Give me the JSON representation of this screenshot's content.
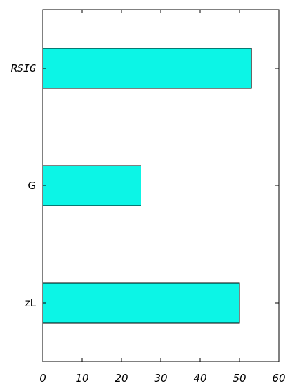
{
  "chart_data": {
    "type": "bar",
    "orientation": "horizontal",
    "categories": [
      "RSIG",
      "G",
      "zL"
    ],
    "values": [
      53,
      25,
      50
    ],
    "xlim": [
      0,
      60
    ],
    "x_ticks": [
      "0",
      "10",
      "20",
      "30",
      "40",
      "50",
      "60"
    ],
    "title": "",
    "xlabel": "",
    "ylabel": "",
    "grid": false,
    "legend": "none",
    "bar_color": "#0cf5e6"
  }
}
